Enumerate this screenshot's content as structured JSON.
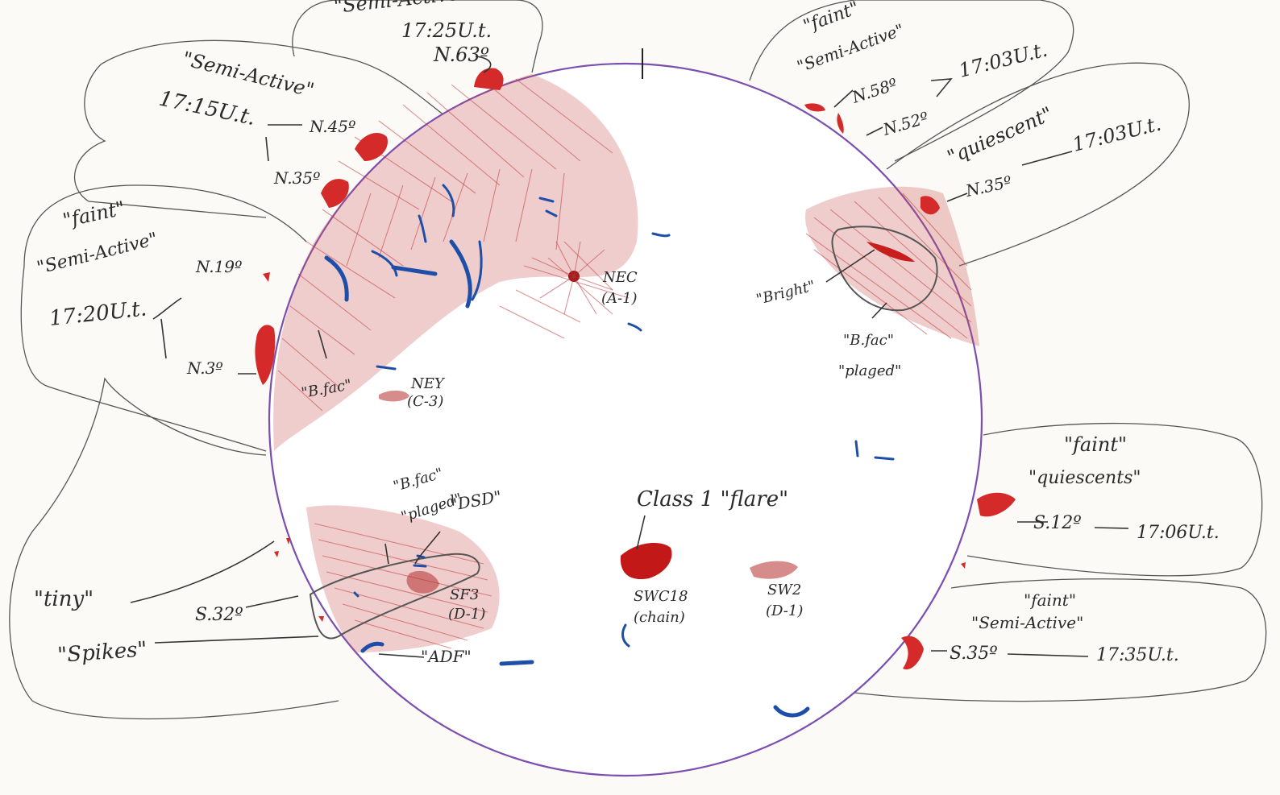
{
  "prominence_groups": {
    "ne_top": {
      "status": "\"Semi-Active\"",
      "time": "17:25U.t.",
      "latitude": "N.63º"
    },
    "nw_upper": {
      "status": "\"Semi-Active\"",
      "time": "17:15U.t.",
      "latitude_a": "N.45º",
      "latitude_b": "N.35º"
    },
    "w_mid": {
      "brightness": "\"faint\"",
      "status": "\"Semi-Active\"",
      "time": "17:20U.t.",
      "latitude_a": "N.19º",
      "latitude_b": "N.3º"
    },
    "e_top": {
      "brightness": "\"faint\"",
      "status": "\"Semi-Active\"",
      "time": "17:03U.t.",
      "latitude_a": "N.58º",
      "latitude_b": "N.52º"
    },
    "e_mid": {
      "status": "\"quiescent\"",
      "time": "17:03U.t.",
      "latitude": "N.35º"
    },
    "e_lower": {
      "brightness": "\"faint\"",
      "status": "\"quiescents\"",
      "latitude": "S.12º",
      "time": "17:06U.t."
    },
    "e_bottom": {
      "brightness": "\"faint\"",
      "status": "\"Semi-Active\"",
      "latitude": "S.35º",
      "time": "17:35U.t."
    },
    "w_lower": {
      "label_a": "\"tiny\"",
      "label_b": "\"Spikes\"",
      "latitude": "S.32º"
    }
  },
  "disk_labels": {
    "bfac_west": "\"B.fac\"",
    "nec": "NEC",
    "nec_class": "(A-1)",
    "ney": "NEY",
    "ney_class": "(C-3)",
    "bright": "\"Bright\"",
    "bfac_east": "\"B.fac\"",
    "plaged_east": "\"plaged\"",
    "bfac_sw": "\"B.fac\"",
    "plaged_sw": "\"plaged\"",
    "dsd": "\"DSD\"",
    "sf3": "SF3",
    "sf3_class": "(D-1)",
    "adf": "\"ADF\"",
    "flare": "Class 1 \"flare\"",
    "swc18": "SWC18",
    "swc18_sub": "(chain)",
    "sw2": "SW2",
    "sw2_class": "(D-1)"
  },
  "colors": {
    "disk_outline": "#7a4fb0",
    "prominence_red": "#d42a2a",
    "filament_blue": "#1d4ea8",
    "pencil": "#2a2a2a"
  }
}
